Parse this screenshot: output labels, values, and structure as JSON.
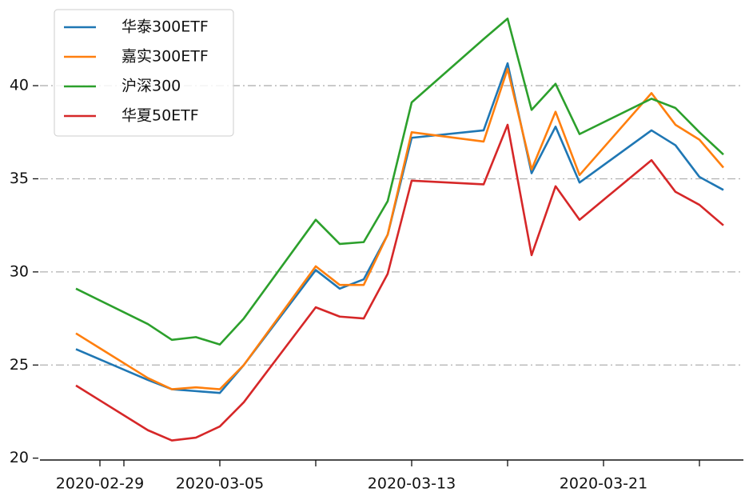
{
  "chart_data": {
    "type": "line",
    "x": [
      "2020-02-28",
      "2020-03-02",
      "2020-03-03",
      "2020-03-04",
      "2020-03-05",
      "2020-03-06",
      "2020-03-09",
      "2020-03-10",
      "2020-03-11",
      "2020-03-12",
      "2020-03-13",
      "2020-03-16",
      "2020-03-17",
      "2020-03-18",
      "2020-03-19",
      "2020-03-20",
      "2020-03-23",
      "2020-03-24",
      "2020-03-25",
      "2020-03-26"
    ],
    "series": [
      {
        "name": "华泰300ETF",
        "color": "#1f77b4",
        "values": [
          25.85,
          24.2,
          23.7,
          23.6,
          23.5,
          25.0,
          30.1,
          29.1,
          29.6,
          32.0,
          37.2,
          37.6,
          41.2,
          35.3,
          37.8,
          34.8,
          37.6,
          36.8,
          35.1,
          34.4
        ]
      },
      {
        "name": "嘉实300ETF",
        "color": "#ff7f0e",
        "values": [
          26.7,
          24.3,
          23.7,
          23.8,
          23.7,
          25.0,
          30.3,
          29.3,
          29.3,
          32.0,
          37.5,
          37.0,
          40.9,
          35.5,
          38.6,
          35.2,
          39.6,
          37.9,
          37.1,
          35.6
        ]
      },
      {
        "name": "沪深300",
        "color": "#2ca02c",
        "values": [
          29.1,
          27.2,
          26.35,
          26.5,
          26.1,
          27.5,
          32.8,
          31.5,
          31.6,
          33.8,
          39.1,
          42.5,
          43.6,
          38.7,
          40.1,
          37.4,
          39.3,
          38.8,
          37.5,
          36.3
        ]
      },
      {
        "name": "华夏50ETF",
        "color": "#d62728",
        "values": [
          23.9,
          21.5,
          20.95,
          21.1,
          21.7,
          23.0,
          28.1,
          27.6,
          27.5,
          29.9,
          34.9,
          34.7,
          37.9,
          30.9,
          34.6,
          32.8,
          36.0,
          34.3,
          33.6,
          32.5
        ]
      }
    ],
    "xlim": [
      "2020-02-26T12:00",
      "2020-03-26T20:00"
    ],
    "xticks": [
      "2020-02-29",
      "2020-03-05",
      "2020-03-13",
      "2020-03-21"
    ],
    "xminorticks": [
      "2020-03-01",
      "2020-03-09",
      "2020-03-17",
      "2020-03-25"
    ],
    "ylim": [
      19.9,
      44.6
    ],
    "yticks": [
      20,
      25,
      30,
      35,
      40
    ],
    "grid": true,
    "legend": "upper left"
  }
}
